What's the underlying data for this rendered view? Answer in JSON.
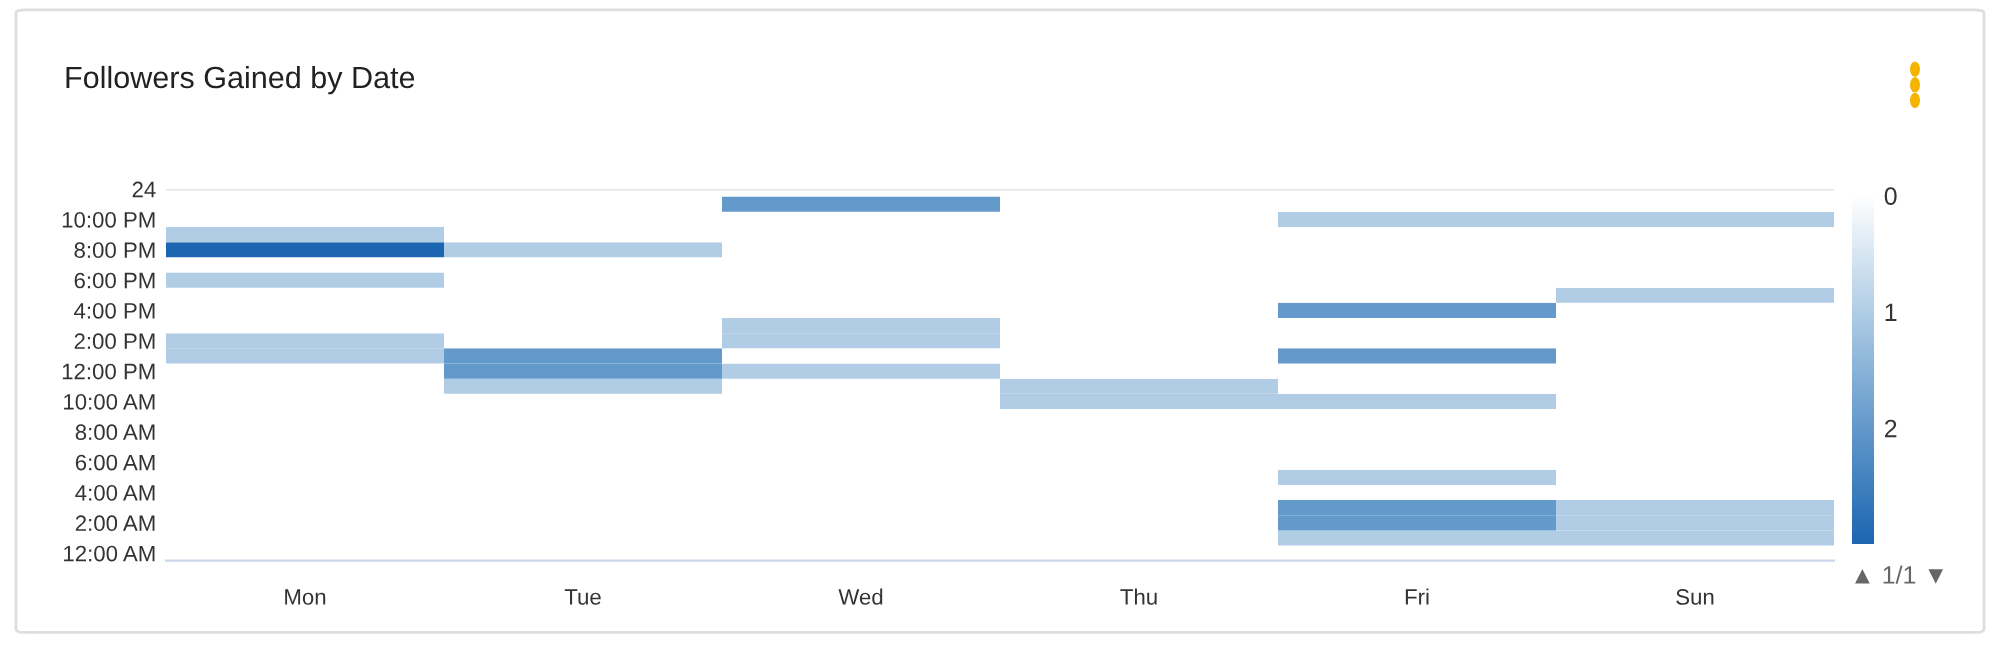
{
  "chart_data": {
    "type": "heatmap",
    "title": "Followers Gained by Date",
    "categories": [
      "Mon",
      "Tue",
      "Wed",
      "Thu",
      "Fri",
      "Sun"
    ],
    "ylim": [
      -0.5,
      24
    ],
    "yticks": [
      {
        "value": 0,
        "label": "12:00 AM"
      },
      {
        "value": 2,
        "label": "2:00 AM"
      },
      {
        "value": 4,
        "label": "4:00 AM"
      },
      {
        "value": 6,
        "label": "6:00 AM"
      },
      {
        "value": 8,
        "label": "8:00 AM"
      },
      {
        "value": 10,
        "label": "10:00 AM"
      },
      {
        "value": 12,
        "label": "12:00 PM"
      },
      {
        "value": 14,
        "label": "2:00 PM"
      },
      {
        "value": 16,
        "label": "4:00 PM"
      },
      {
        "value": 18,
        "label": "6:00 PM"
      },
      {
        "value": 20,
        "label": "8:00 PM"
      },
      {
        "value": 22,
        "label": "10:00 PM"
      },
      24
    ],
    "cells": [
      [
        0,
        0,
        2,
        0,
        0,
        0
      ],
      [
        0,
        0,
        0,
        0,
        1,
        1
      ],
      [
        1,
        0,
        0,
        0,
        0,
        0
      ],
      [
        3,
        1,
        0,
        0,
        0,
        0
      ],
      [
        0,
        0,
        0,
        0,
        0,
        0
      ],
      [
        1,
        0,
        0,
        0,
        0,
        0
      ],
      [
        0,
        0,
        0,
        0,
        0,
        1
      ],
      [
        0,
        0,
        0,
        0,
        2,
        0
      ],
      [
        0,
        0,
        1,
        0,
        0,
        0
      ],
      [
        1,
        0,
        1,
        0,
        0,
        0
      ],
      [
        1,
        2,
        0,
        0,
        2,
        0
      ],
      [
        0,
        2,
        1,
        0,
        0,
        0
      ],
      [
        0,
        1,
        0,
        1,
        0,
        0
      ],
      [
        0,
        0,
        0,
        1,
        1,
        0
      ],
      [
        0,
        0,
        0,
        0,
        0,
        0
      ],
      [
        0,
        0,
        0,
        0,
        0,
        0
      ],
      [
        0,
        0,
        0,
        0,
        0,
        0
      ],
      [
        0,
        0,
        0,
        0,
        0,
        0
      ],
      [
        0,
        0,
        0,
        0,
        1,
        0
      ],
      [
        0,
        0,
        0,
        0,
        0,
        0
      ],
      [
        0,
        0,
        0,
        0,
        2,
        1
      ],
      [
        0,
        0,
        0,
        0,
        2,
        1
      ],
      [
        0,
        0,
        0,
        0,
        1,
        1
      ],
      [
        0,
        0,
        0,
        0,
        0,
        0
      ]
    ],
    "clim": [
      0,
      3
    ],
    "cticks": [
      0,
      1,
      2
    ],
    "annotations": [
      "▲ 1/1 ▼"
    ]
  }
}
